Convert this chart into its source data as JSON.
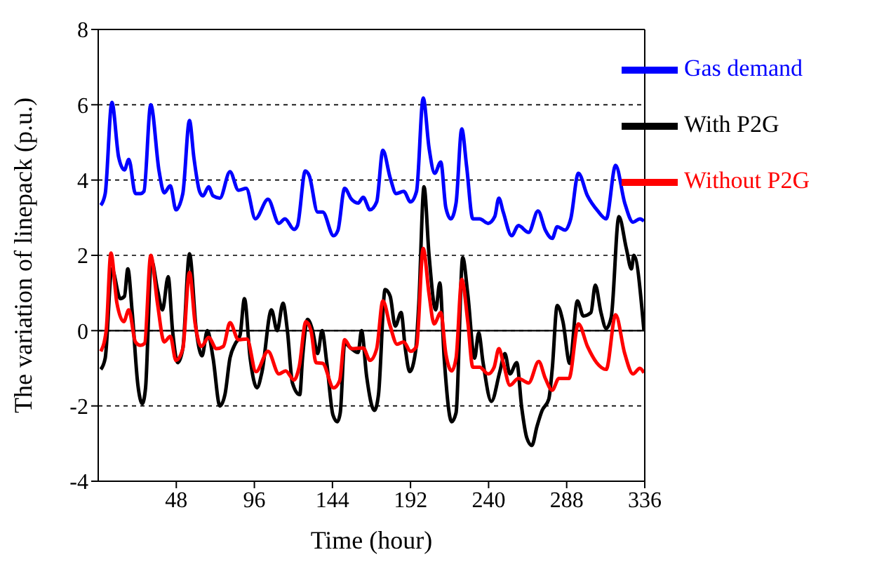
{
  "chart_data": {
    "type": "line",
    "xlabel": "Time (hour)",
    "ylabel": "The variation of linepack (p.u.)",
    "xlim": [
      0,
      336
    ],
    "xticks": [
      48,
      96,
      144,
      192,
      240,
      288,
      336
    ],
    "ylim": [
      -4,
      8
    ],
    "yticks": [
      -4,
      -2,
      0,
      2,
      4,
      6,
      8
    ],
    "grid": "y",
    "legend": "top right",
    "marker": "none",
    "line_style": "solid",
    "ref_lines": [
      {
        "axis": "y",
        "value": 0,
        "color": "#000000",
        "line_style": "solid"
      }
    ],
    "series": [
      {
        "name": "With P2G",
        "color": "#000000",
        "x": [
          1.6,
          4.3,
          8.4,
          13.6,
          16.1,
          18.2,
          20.9,
          24.4,
          27.1,
          29.1,
          32.7,
          36.4,
          39.5,
          43.0,
          45.7,
          48.9,
          52.0,
          56.1,
          60.3,
          63.8,
          67.1,
          70.6,
          74.8,
          77.9,
          81.0,
          84.1,
          87.2,
          89.9,
          93.4,
          97.6,
          100.7,
          106.5,
          110.0,
          113.6,
          116.3,
          119.4,
          123.9,
          125.6,
          128.7,
          131.8,
          134.9,
          137.6,
          140.5,
          144.3,
          147.0,
          148.8,
          151.5,
          155.7,
          159.8,
          161.9,
          165.0,
          169.8,
          172.3,
          176.4,
          179.5,
          182.6,
          186.2,
          188.8,
          191.5,
          195.1,
          197.1,
          200.3,
          203.4,
          207.5,
          210.0,
          212.7,
          217.3,
          220.0,
          224.1,
          227.2,
          231.4,
          233.9,
          236.6,
          241.7,
          246.9,
          250.0,
          253.1,
          257.3,
          260.4,
          263.5,
          266.6,
          269.7,
          272.9,
          277.0,
          279.1,
          282.2,
          285.7,
          289.9,
          294.6,
          298.2,
          302.9,
          305.6,
          309.1,
          312.3,
          315.4,
          320.1,
          324.7,
          327.8,
          329.3,
          335.5
        ],
        "values": [
          -1.03,
          -0.73,
          1.64,
          0.85,
          0.91,
          1.64,
          0.48,
          -1.45,
          -1.94,
          -1.52,
          1.88,
          1.09,
          0.55,
          1.43,
          0,
          -0.85,
          -0.48,
          2.04,
          0,
          -0.67,
          0,
          -0.73,
          -2.0,
          -1.7,
          -0.73,
          -0.36,
          -0.12,
          0.85,
          -0.73,
          -1.52,
          -1.09,
          0.55,
          0,
          0.73,
          0,
          -1.39,
          -1.7,
          -0.73,
          0.3,
          0,
          -0.61,
          0,
          -0.85,
          -2.24,
          -2.42,
          -2.18,
          -0.34,
          -0.48,
          -0.58,
          0,
          -1.21,
          -2.12,
          -1.7,
          1.09,
          0.91,
          0.12,
          0.48,
          -0.48,
          -1.09,
          -0.55,
          0.73,
          3.82,
          2.0,
          0.55,
          1.27,
          -0.73,
          -2.42,
          -2.18,
          1.94,
          0.97,
          -0.73,
          -0.06,
          -0.85,
          -1.88,
          -1.09,
          -0.61,
          -1.15,
          -0.85,
          -2.06,
          -2.85,
          -3.05,
          -2.55,
          -2.12,
          -1.82,
          -1.03,
          0.67,
          0.24,
          -0.87,
          0.79,
          0.39,
          0.48,
          1.21,
          0.48,
          0.06,
          0.36,
          3.03,
          2.18,
          1.64,
          2.0,
          0
        ]
      },
      {
        "name": "Without P2G",
        "color": "#ff0000",
        "x": [
          1.6,
          4.9,
          7.8,
          11.5,
          15.7,
          18.8,
          22.9,
          26.0,
          28.5,
          32.3,
          36.4,
          40.6,
          44.3,
          47.8,
          52.0,
          56.1,
          59.6,
          63.4,
          67.9,
          72.7,
          76.9,
          81.0,
          86.2,
          91.4,
          97.0,
          104.4,
          111.1,
          115.2,
          120.4,
          123.5,
          127.7,
          130.8,
          133.9,
          138.0,
          144.7,
          148.4,
          151.5,
          155.7,
          162.9,
          167.1,
          171.2,
          175.0,
          179.5,
          183.7,
          187.8,
          192.0,
          195.7,
          199.8,
          203.4,
          206.5,
          210.6,
          213.7,
          217.3,
          220.0,
          223.5,
          227.2,
          230.3,
          234.5,
          239.7,
          243.4,
          246.3,
          249.0,
          253.1,
          258.3,
          264.6,
          270.8,
          274.9,
          279.1,
          283.2,
          289.4,
          295.2,
          300.8,
          306.4,
          312.3,
          318.1,
          323.7,
          328.8,
          333.0,
          335.5
        ],
        "values": [
          -0.55,
          0,
          2.06,
          0.73,
          0.24,
          0.55,
          -0.3,
          -0.39,
          -0.34,
          2.0,
          0.73,
          -0.3,
          -0.15,
          -0.79,
          -0.48,
          1.55,
          0.18,
          -0.42,
          -0.18,
          -0.48,
          -0.42,
          0.21,
          -0.24,
          -0.22,
          -1.09,
          -0.55,
          -1.15,
          -1.07,
          -1.31,
          -0.97,
          0.24,
          0,
          -0.85,
          -0.87,
          -1.52,
          -1.33,
          -0.24,
          -0.48,
          -0.46,
          -0.79,
          -0.48,
          0.79,
          0.12,
          -0.36,
          -0.3,
          -0.55,
          -0.42,
          2.18,
          0.97,
          0.18,
          0.48,
          -0.61,
          -1.07,
          -0.73,
          1.36,
          0.24,
          -0.97,
          -0.97,
          -1.15,
          -0.97,
          -0.48,
          -0.85,
          -1.45,
          -1.27,
          -1.39,
          -0.82,
          -1.27,
          -1.58,
          -1.27,
          -1.27,
          0.18,
          -0.42,
          -0.85,
          -1.03,
          0.42,
          -0.61,
          -1.15,
          -1.0,
          -1.12
        ]
      },
      {
        "name": "Gas demand",
        "color": "#0000ff",
        "x": [
          1.6,
          4.3,
          8.4,
          12.6,
          16.1,
          18.8,
          22.9,
          26.0,
          28.1,
          32.3,
          37.4,
          40.6,
          44.3,
          47.8,
          52.0,
          56.1,
          58.8,
          62.3,
          64.4,
          67.9,
          70.6,
          74.8,
          81.0,
          86.2,
          91.0,
          96.6,
          104.4,
          111.1,
          114.8,
          120.4,
          122.5,
          127.3,
          129.7,
          134.9,
          138.0,
          144.7,
          147.4,
          151.5,
          155.7,
          159.8,
          162.9,
          167.1,
          171.2,
          175.0,
          179.5,
          183.2,
          187.8,
          192.0,
          195.7,
          199.8,
          203.4,
          206.9,
          210.6,
          213.7,
          216.8,
          220.0,
          223.5,
          226.5,
          230.3,
          234.5,
          239.7,
          243.8,
          246.3,
          249.0,
          254.2,
          258.3,
          264.6,
          270.4,
          274.9,
          279.1,
          282.2,
          287.0,
          290.5,
          295.2,
          300.8,
          307.1,
          312.3,
          318.1,
          323.7,
          328.8,
          333.0,
          335.5
        ],
        "values": [
          3.33,
          3.64,
          6.06,
          4.6,
          4.27,
          4.55,
          3.64,
          3.64,
          3.7,
          6.0,
          4.24,
          3.66,
          3.85,
          3.21,
          3.64,
          5.58,
          4.6,
          3.7,
          3.58,
          3.82,
          3.58,
          3.52,
          4.22,
          3.73,
          3.78,
          2.97,
          3.49,
          2.85,
          2.97,
          2.69,
          2.79,
          4.24,
          4.12,
          3.15,
          3.15,
          2.52,
          2.67,
          3.78,
          3.49,
          3.39,
          3.54,
          3.21,
          3.42,
          4.79,
          4.06,
          3.64,
          3.7,
          3.42,
          3.7,
          6.18,
          4.85,
          4.18,
          4.48,
          3.27,
          2.97,
          3.39,
          5.36,
          4.36,
          2.97,
          2.97,
          2.85,
          3.03,
          3.52,
          3.15,
          2.52,
          2.79,
          2.61,
          3.18,
          2.67,
          2.45,
          2.76,
          2.67,
          2.97,
          4.18,
          3.58,
          3.18,
          2.97,
          4.39,
          3.39,
          2.88,
          2.97,
          2.91
        ]
      }
    ]
  }
}
